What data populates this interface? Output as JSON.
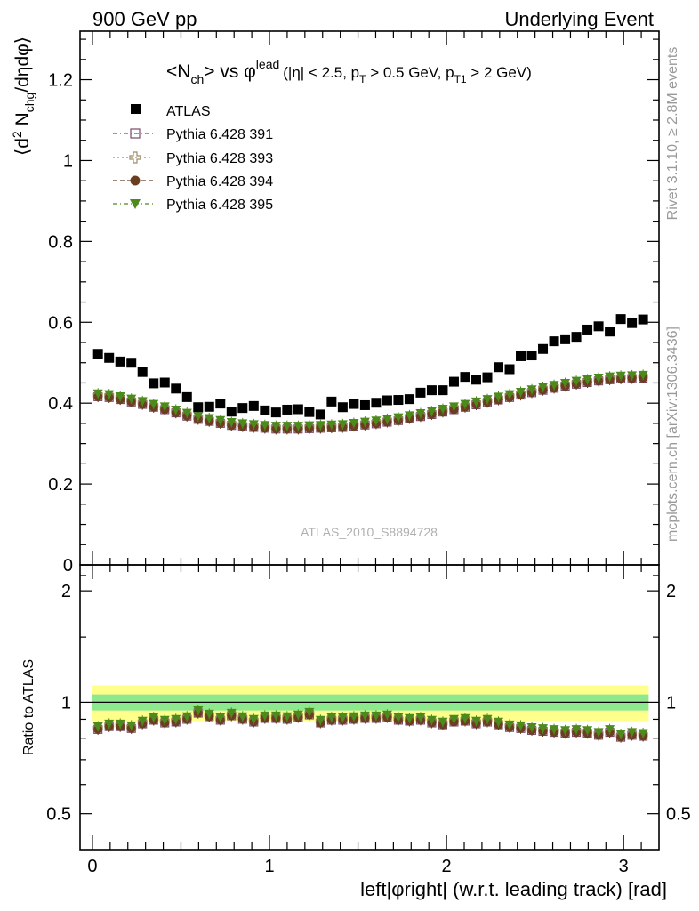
{
  "header": {
    "left": "900 GeV pp",
    "right": "Underlying Event"
  },
  "side_labels": {
    "rivet": "Rivet 3.1.10, ≥ 2.8M events",
    "mcplots": "mcplots.cern.ch [arXiv:1306.3436]"
  },
  "watermark": "ATLAS_2010_S8894728",
  "chart_data": [
    {
      "type": "scatter",
      "title": "<N_ch> vs φ^lead (|η| < 2.5, p_T > 0.5 GeV, p_T1 > 2 GeV)",
      "title_parts": {
        "main1": "<N",
        "main1_sub": "ch",
        "main2": "> vs ",
        "phi": "φ",
        "phi_sup": "lead",
        "cuts1": "(|η| < 2.5, p",
        "cuts1_sub": "T",
        "cuts2": " > 0.5 GeV, p",
        "cuts2_sub": "T1",
        "cuts3": " > 2 GeV)"
      },
      "ylabel": "⟨d² N_chg/dηdφ⟩",
      "ylabel_parts": {
        "a": "⟨d",
        "a_sup": "2",
        "b": " N",
        "b_sub": "chg",
        "c": "/dηdφ⟩"
      },
      "xlim": [
        -0.07,
        3.2
      ],
      "ylim": [
        0,
        1.32
      ],
      "yticks": [
        0,
        0.2,
        0.4,
        0.6,
        0.8,
        1,
        1.2
      ],
      "ytick_labels": [
        "0",
        "0.2",
        "0.4",
        "0.6",
        "0.8",
        "1",
        "1.2"
      ],
      "legend_position": "top-left",
      "series": [
        {
          "name": "ATLAS",
          "color": "#000000",
          "marker": "filled-square",
          "values": [
            0.522,
            0.512,
            0.503,
            0.5,
            0.477,
            0.449,
            0.451,
            0.436,
            0.415,
            0.39,
            0.391,
            0.399,
            0.379,
            0.388,
            0.393,
            0.382,
            0.377,
            0.384,
            0.385,
            0.378,
            0.372,
            0.404,
            0.39,
            0.398,
            0.395,
            0.401,
            0.407,
            0.408,
            0.41,
            0.426,
            0.432,
            0.432,
            0.453,
            0.465,
            0.458,
            0.464,
            0.489,
            0.484,
            0.516,
            0.518,
            0.534,
            0.553,
            0.558,
            0.564,
            0.582,
            0.59,
            0.577,
            0.608,
            0.598,
            0.607
          ]
        },
        {
          "name": "Pythia 6.428 391",
          "color": "#7b4a6a",
          "marker": "open-square",
          "values": []
        },
        {
          "name": "Pythia 6.428 393",
          "color": "#9c8b63",
          "marker": "open-cross",
          "values": []
        },
        {
          "name": "Pythia 6.428 394",
          "color": "#6b3e22",
          "marker": "filled-circle",
          "values": [
            0.416,
            0.414,
            0.409,
            0.403,
            0.397,
            0.39,
            0.384,
            0.376,
            0.368,
            0.36,
            0.355,
            0.35,
            0.345,
            0.342,
            0.34,
            0.338,
            0.336,
            0.336,
            0.336,
            0.337,
            0.338,
            0.339,
            0.34,
            0.343,
            0.346,
            0.349,
            0.353,
            0.357,
            0.362,
            0.367,
            0.372,
            0.378,
            0.384,
            0.39,
            0.396,
            0.402,
            0.408,
            0.414,
            0.42,
            0.426,
            0.432,
            0.437,
            0.442,
            0.447,
            0.451,
            0.455,
            0.458,
            0.46,
            0.461,
            0.462
          ]
        },
        {
          "name": "Pythia 6.428 395",
          "color": "#4d8a1c",
          "marker": "filled-triangle-down",
          "values": []
        }
      ]
    },
    {
      "type": "scatter",
      "ylabel": "Ratio to ATLAS",
      "xlabel": "left|φright| (w.r.t. leading track) [rad]",
      "xlim": [
        -0.07,
        3.2
      ],
      "xticks": [
        0,
        1,
        2,
        3
      ],
      "xtick_labels": [
        "0",
        "1",
        "2",
        "3"
      ],
      "ylim": [
        0.4,
        2.35
      ],
      "yticks": [
        0.5,
        1,
        2
      ],
      "ytick_labels": [
        "0.5",
        "1",
        "2"
      ],
      "log_y": true,
      "bands": [
        {
          "name": "stat+syst",
          "color": "#ffff8c",
          "half_width": 0.11
        },
        {
          "name": "stat",
          "color": "#8ee88e",
          "half_width": 0.05
        }
      ],
      "series": [
        {
          "name": "Pythia 6.428 394",
          "color": "#6b3e22",
          "values": [
            0.845,
            0.86,
            0.86,
            0.85,
            0.875,
            0.895,
            0.88,
            0.885,
            0.9,
            0.935,
            0.915,
            0.895,
            0.92,
            0.9,
            0.885,
            0.905,
            0.905,
            0.9,
            0.91,
            0.925,
            0.88,
            0.895,
            0.895,
            0.9,
            0.905,
            0.905,
            0.91,
            0.895,
            0.89,
            0.895,
            0.88,
            0.87,
            0.885,
            0.89,
            0.875,
            0.885,
            0.87,
            0.855,
            0.85,
            0.84,
            0.835,
            0.83,
            0.825,
            0.83,
            0.825,
            0.815,
            0.83,
            0.805,
            0.815,
            0.81
          ]
        }
      ]
    }
  ]
}
